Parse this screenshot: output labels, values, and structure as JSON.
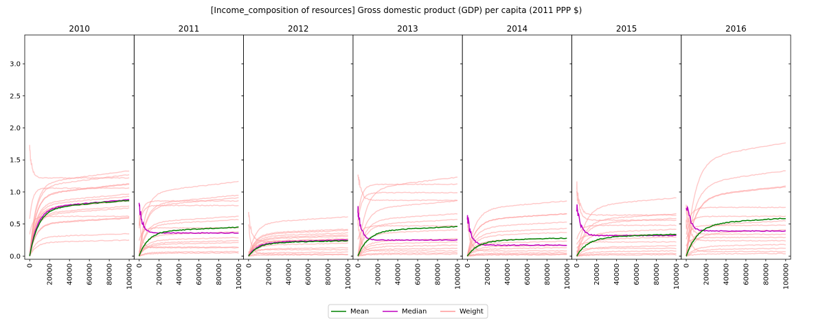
{
  "chart_data": {
    "type": "line",
    "title": "[Income_composition of resources] Gross domestic product (GDP) per capita (2011 PPP $)",
    "ylim": [
      -0.05,
      3.45
    ],
    "xlim": [
      -5000,
      105000
    ],
    "yticks": [
      "0.0",
      "0.5",
      "1.0",
      "1.5",
      "2.0",
      "2.5",
      "3.0"
    ],
    "xticks": [
      "0",
      "20000",
      "40000",
      "60000",
      "80000",
      "100000"
    ],
    "grid": false,
    "legend": {
      "placement": "bottom-center",
      "entries": [
        {
          "label": "Mean",
          "color": "#008000"
        },
        {
          "label": "Median",
          "color": "#bf00bf"
        },
        {
          "label": "Weight",
          "color": "#ff9999"
        }
      ]
    },
    "panels": [
      {
        "title": "2010",
        "mean_final": 0.87,
        "median_final": 0.88,
        "weights_final": [
          1.33,
          1.27,
          1.22,
          1.13,
          1.12,
          1.06,
          0.97,
          0.93,
          0.88,
          0.86,
          0.78,
          0.75,
          0.62,
          0.6,
          0.59,
          0.35,
          0.25
        ]
      },
      {
        "title": "2011",
        "mean_final": 0.45,
        "median_final": 0.36,
        "weights_final": [
          1.16,
          0.95,
          0.91,
          0.86,
          0.79,
          0.62,
          0.57,
          0.44,
          0.38,
          0.29,
          0.24,
          0.21,
          0.14,
          0.13,
          0.07,
          0.05
        ]
      },
      {
        "title": "2012",
        "mean_final": 0.24,
        "median_final": 0.25,
        "weights_final": [
          0.61,
          0.42,
          0.4,
          0.36,
          0.33,
          0.31,
          0.27,
          0.26,
          0.23,
          0.2,
          0.13,
          0.1,
          0.06,
          0.03,
          0.02
        ]
      },
      {
        "title": "2013",
        "mean_final": 0.46,
        "median_final": 0.25,
        "weights_final": [
          1.23,
          1.12,
          0.99,
          0.87,
          0.86,
          0.66,
          0.57,
          0.47,
          0.41,
          0.27,
          0.22,
          0.17,
          0.12,
          0.08,
          0.05,
          0.03
        ]
      },
      {
        "title": "2014",
        "mean_final": 0.28,
        "median_final": 0.17,
        "weights_final": [
          0.86,
          0.66,
          0.66,
          0.53,
          0.43,
          0.37,
          0.28,
          0.23,
          0.17,
          0.13,
          0.08,
          0.05,
          0.03,
          0.02
        ]
      },
      {
        "title": "2015",
        "mean_final": 0.34,
        "median_final": 0.32,
        "weights_final": [
          0.91,
          0.66,
          0.64,
          0.59,
          0.56,
          0.48,
          0.42,
          0.33,
          0.3,
          0.22,
          0.16,
          0.12,
          0.08,
          0.04,
          0.02
        ]
      },
      {
        "title": "2016",
        "mean_final": 0.59,
        "median_final": 0.39,
        "weights_final": [
          1.77,
          1.33,
          1.09,
          1.08,
          0.76,
          0.62,
          0.55,
          0.48,
          0.41,
          0.34,
          0.29,
          0.24,
          0.18,
          0.12,
          0.07,
          0.04
        ]
      }
    ]
  }
}
